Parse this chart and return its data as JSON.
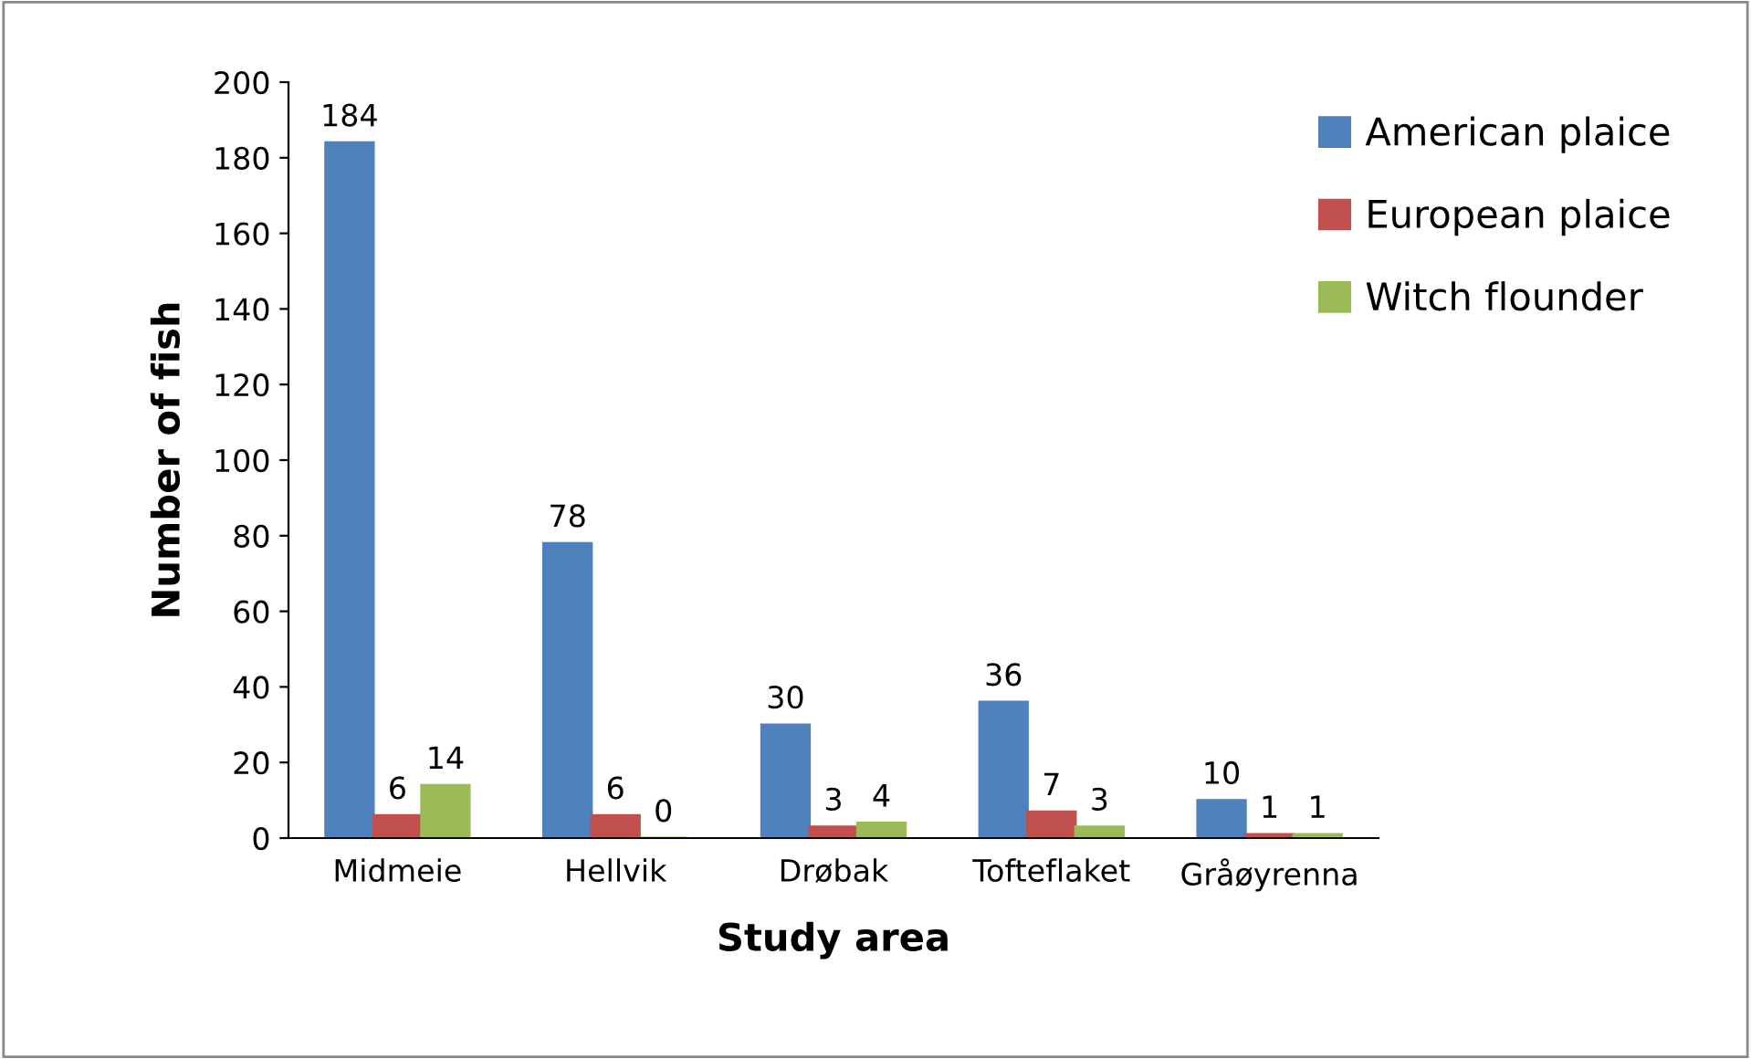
{
  "chart_data": {
    "type": "bar",
    "xlabel": "Study area",
    "ylabel": "Number of fish",
    "categories": [
      "Midmeie",
      "Hellvik",
      "Drøbak",
      "Tofteflaket",
      "Gråøyrenna"
    ],
    "series": [
      {
        "name": "American plaice",
        "color": "#4f81bd",
        "values": [
          184,
          78,
          30,
          36,
          10
        ]
      },
      {
        "name": "European plaice",
        "color": "#c0504d",
        "values": [
          6,
          6,
          3,
          7,
          1
        ]
      },
      {
        "name": "Witch flounder",
        "color": "#9bbb59",
        "values": [
          14,
          0,
          4,
          3,
          1
        ]
      }
    ],
    "ylim": [
      0,
      200
    ],
    "yticks": [
      0,
      20,
      40,
      60,
      80,
      100,
      120,
      140,
      160,
      180,
      200
    ],
    "data_labels": true,
    "grid": false,
    "legend": "top right"
  }
}
